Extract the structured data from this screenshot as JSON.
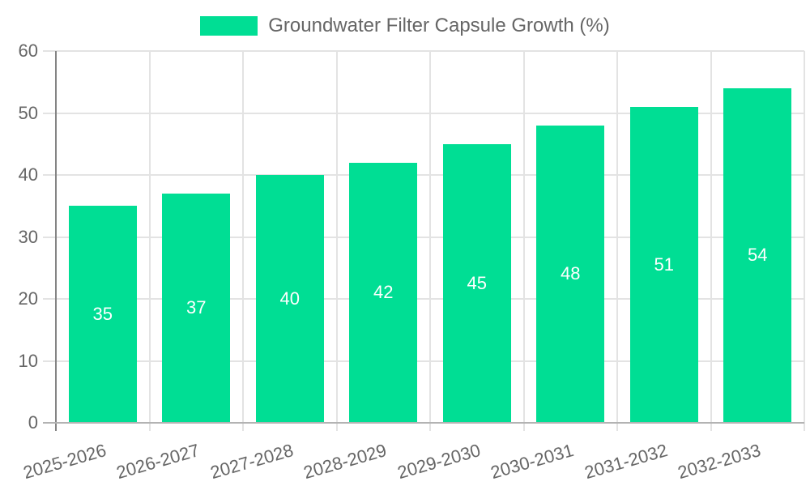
{
  "legend": {
    "label": "Groundwater Filter Capsule Growth (%)"
  },
  "colors": {
    "bar": "#00DE94",
    "axis_text": "#666666",
    "gridline": "#e3e3e3",
    "y_axis_line": "#848484",
    "x_axis_line": "#b3b3b3",
    "value_label": "#ffffff",
    "background": "#ffffff"
  },
  "chart_data": {
    "type": "bar",
    "title": "Groundwater Filter Capsule Growth (%)",
    "categories": [
      "2025-2026",
      "2026-2027",
      "2027-2028",
      "2028-2029",
      "2029-2030",
      "2030-2031",
      "2031-2032",
      "2032-2033"
    ],
    "series": [
      {
        "name": "Groundwater Filter Capsule Growth (%)",
        "values": [
          35,
          37,
          40,
          42,
          45,
          48,
          51,
          54
        ]
      }
    ],
    "xlabel": "",
    "ylabel": "",
    "ylim": [
      0,
      60
    ],
    "yticks": [
      0,
      10,
      20,
      30,
      40,
      50,
      60
    ],
    "grid": true,
    "legend_position": "top-center",
    "bar_color": "#00DE94",
    "value_label_color": "#ffffff",
    "value_label_position": "inside-center"
  }
}
